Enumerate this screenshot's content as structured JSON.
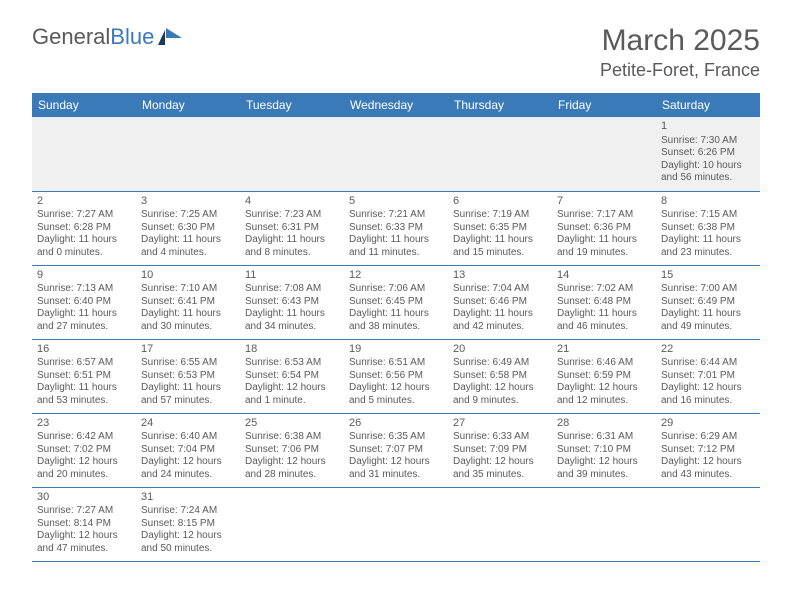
{
  "logo": {
    "text_general": "General",
    "text_blue": "Blue"
  },
  "title": {
    "month": "March 2025",
    "location": "Petite-Foret, France"
  },
  "colors": {
    "header_bg": "#3a7ab8",
    "header_text": "#ffffff",
    "body_text": "#5a5a5a",
    "border": "#3a7ab8",
    "empty_bg": "#f0f0f0"
  },
  "day_headers": [
    "Sunday",
    "Monday",
    "Tuesday",
    "Wednesday",
    "Thursday",
    "Friday",
    "Saturday"
  ],
  "weeks": [
    [
      null,
      null,
      null,
      null,
      null,
      null,
      {
        "day": "1",
        "sunrise": "Sunrise: 7:30 AM",
        "sunset": "Sunset: 6:26 PM",
        "daylight": "Daylight: 10 hours and 56 minutes."
      }
    ],
    [
      {
        "day": "2",
        "sunrise": "Sunrise: 7:27 AM",
        "sunset": "Sunset: 6:28 PM",
        "daylight": "Daylight: 11 hours and 0 minutes."
      },
      {
        "day": "3",
        "sunrise": "Sunrise: 7:25 AM",
        "sunset": "Sunset: 6:30 PM",
        "daylight": "Daylight: 11 hours and 4 minutes."
      },
      {
        "day": "4",
        "sunrise": "Sunrise: 7:23 AM",
        "sunset": "Sunset: 6:31 PM",
        "daylight": "Daylight: 11 hours and 8 minutes."
      },
      {
        "day": "5",
        "sunrise": "Sunrise: 7:21 AM",
        "sunset": "Sunset: 6:33 PM",
        "daylight": "Daylight: 11 hours and 11 minutes."
      },
      {
        "day": "6",
        "sunrise": "Sunrise: 7:19 AM",
        "sunset": "Sunset: 6:35 PM",
        "daylight": "Daylight: 11 hours and 15 minutes."
      },
      {
        "day": "7",
        "sunrise": "Sunrise: 7:17 AM",
        "sunset": "Sunset: 6:36 PM",
        "daylight": "Daylight: 11 hours and 19 minutes."
      },
      {
        "day": "8",
        "sunrise": "Sunrise: 7:15 AM",
        "sunset": "Sunset: 6:38 PM",
        "daylight": "Daylight: 11 hours and 23 minutes."
      }
    ],
    [
      {
        "day": "9",
        "sunrise": "Sunrise: 7:13 AM",
        "sunset": "Sunset: 6:40 PM",
        "daylight": "Daylight: 11 hours and 27 minutes."
      },
      {
        "day": "10",
        "sunrise": "Sunrise: 7:10 AM",
        "sunset": "Sunset: 6:41 PM",
        "daylight": "Daylight: 11 hours and 30 minutes."
      },
      {
        "day": "11",
        "sunrise": "Sunrise: 7:08 AM",
        "sunset": "Sunset: 6:43 PM",
        "daylight": "Daylight: 11 hours and 34 minutes."
      },
      {
        "day": "12",
        "sunrise": "Sunrise: 7:06 AM",
        "sunset": "Sunset: 6:45 PM",
        "daylight": "Daylight: 11 hours and 38 minutes."
      },
      {
        "day": "13",
        "sunrise": "Sunrise: 7:04 AM",
        "sunset": "Sunset: 6:46 PM",
        "daylight": "Daylight: 11 hours and 42 minutes."
      },
      {
        "day": "14",
        "sunrise": "Sunrise: 7:02 AM",
        "sunset": "Sunset: 6:48 PM",
        "daylight": "Daylight: 11 hours and 46 minutes."
      },
      {
        "day": "15",
        "sunrise": "Sunrise: 7:00 AM",
        "sunset": "Sunset: 6:49 PM",
        "daylight": "Daylight: 11 hours and 49 minutes."
      }
    ],
    [
      {
        "day": "16",
        "sunrise": "Sunrise: 6:57 AM",
        "sunset": "Sunset: 6:51 PM",
        "daylight": "Daylight: 11 hours and 53 minutes."
      },
      {
        "day": "17",
        "sunrise": "Sunrise: 6:55 AM",
        "sunset": "Sunset: 6:53 PM",
        "daylight": "Daylight: 11 hours and 57 minutes."
      },
      {
        "day": "18",
        "sunrise": "Sunrise: 6:53 AM",
        "sunset": "Sunset: 6:54 PM",
        "daylight": "Daylight: 12 hours and 1 minute."
      },
      {
        "day": "19",
        "sunrise": "Sunrise: 6:51 AM",
        "sunset": "Sunset: 6:56 PM",
        "daylight": "Daylight: 12 hours and 5 minutes."
      },
      {
        "day": "20",
        "sunrise": "Sunrise: 6:49 AM",
        "sunset": "Sunset: 6:58 PM",
        "daylight": "Daylight: 12 hours and 9 minutes."
      },
      {
        "day": "21",
        "sunrise": "Sunrise: 6:46 AM",
        "sunset": "Sunset: 6:59 PM",
        "daylight": "Daylight: 12 hours and 12 minutes."
      },
      {
        "day": "22",
        "sunrise": "Sunrise: 6:44 AM",
        "sunset": "Sunset: 7:01 PM",
        "daylight": "Daylight: 12 hours and 16 minutes."
      }
    ],
    [
      {
        "day": "23",
        "sunrise": "Sunrise: 6:42 AM",
        "sunset": "Sunset: 7:02 PM",
        "daylight": "Daylight: 12 hours and 20 minutes."
      },
      {
        "day": "24",
        "sunrise": "Sunrise: 6:40 AM",
        "sunset": "Sunset: 7:04 PM",
        "daylight": "Daylight: 12 hours and 24 minutes."
      },
      {
        "day": "25",
        "sunrise": "Sunrise: 6:38 AM",
        "sunset": "Sunset: 7:06 PM",
        "daylight": "Daylight: 12 hours and 28 minutes."
      },
      {
        "day": "26",
        "sunrise": "Sunrise: 6:35 AM",
        "sunset": "Sunset: 7:07 PM",
        "daylight": "Daylight: 12 hours and 31 minutes."
      },
      {
        "day": "27",
        "sunrise": "Sunrise: 6:33 AM",
        "sunset": "Sunset: 7:09 PM",
        "daylight": "Daylight: 12 hours and 35 minutes."
      },
      {
        "day": "28",
        "sunrise": "Sunrise: 6:31 AM",
        "sunset": "Sunset: 7:10 PM",
        "daylight": "Daylight: 12 hours and 39 minutes."
      },
      {
        "day": "29",
        "sunrise": "Sunrise: 6:29 AM",
        "sunset": "Sunset: 7:12 PM",
        "daylight": "Daylight: 12 hours and 43 minutes."
      }
    ],
    [
      {
        "day": "30",
        "sunrise": "Sunrise: 7:27 AM",
        "sunset": "Sunset: 8:14 PM",
        "daylight": "Daylight: 12 hours and 47 minutes."
      },
      {
        "day": "31",
        "sunrise": "Sunrise: 7:24 AM",
        "sunset": "Sunset: 8:15 PM",
        "daylight": "Daylight: 12 hours and 50 minutes."
      },
      null,
      null,
      null,
      null,
      null
    ]
  ]
}
